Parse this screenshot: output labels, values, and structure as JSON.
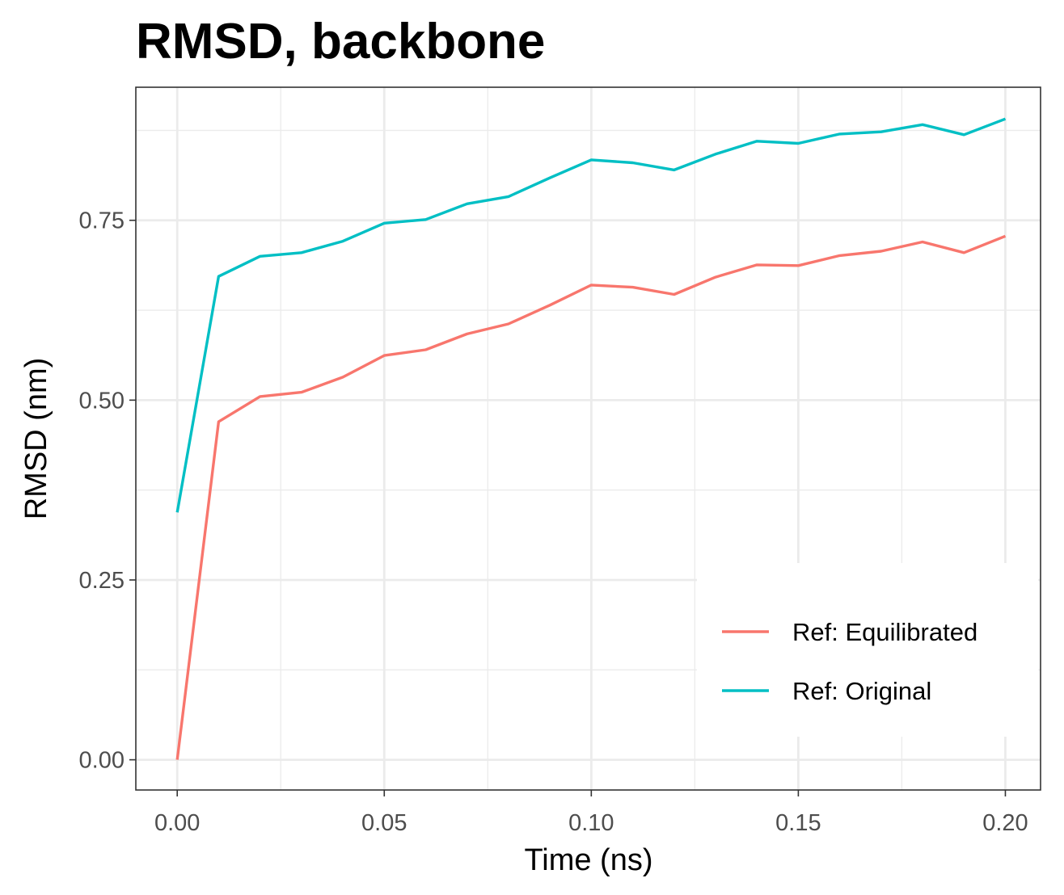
{
  "chart_data": {
    "type": "line",
    "title": "RMSD, backbone",
    "xlabel": "Time (ns)",
    "ylabel": "RMSD (nm)",
    "xlim": [
      -0.01,
      0.2085
    ],
    "ylim": [
      -0.042,
      0.935
    ],
    "x_ticks": [
      0.0,
      0.05,
      0.1,
      0.15,
      0.2
    ],
    "x_tick_labels": [
      "0.00",
      "0.05",
      "0.10",
      "0.15",
      "0.20"
    ],
    "y_ticks": [
      0.0,
      0.25,
      0.5,
      0.75
    ],
    "y_tick_labels": [
      "0.00",
      "0.25",
      "0.50",
      "0.75"
    ],
    "grid": true,
    "legend_position": "bottom-right",
    "x": [
      0.0,
      0.01,
      0.02,
      0.03,
      0.04,
      0.05,
      0.06,
      0.07,
      0.08,
      0.09,
      0.1,
      0.11,
      0.12,
      0.13,
      0.14,
      0.15,
      0.16,
      0.17,
      0.18,
      0.19,
      0.2
    ],
    "series": [
      {
        "name": "Ref: Equilibrated",
        "color": "#F8766D",
        "values": [
          0.0,
          0.47,
          0.505,
          0.511,
          0.532,
          0.562,
          0.57,
          0.592,
          0.606,
          0.632,
          0.66,
          0.657,
          0.647,
          0.671,
          0.688,
          0.687,
          0.701,
          0.707,
          0.72,
          0.705,
          0.728
        ]
      },
      {
        "name": "Ref: Original",
        "color": "#00BFC4",
        "values": [
          0.344,
          0.672,
          0.7,
          0.705,
          0.721,
          0.746,
          0.751,
          0.773,
          0.783,
          0.809,
          0.834,
          0.83,
          0.82,
          0.842,
          0.86,
          0.857,
          0.87,
          0.873,
          0.883,
          0.869,
          0.891
        ]
      }
    ]
  }
}
